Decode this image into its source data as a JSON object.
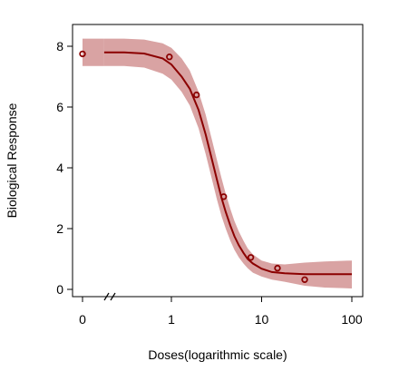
{
  "chart_data": {
    "type": "line",
    "xlabel": "Doses(logarithmic scale)",
    "ylabel": "Biological Response",
    "x_scale": "log",
    "x_break_after_zero": true,
    "xlim": [
      0,
      100
    ],
    "ylim": [
      0,
      8
    ],
    "x_ticks": [
      {
        "value": 0,
        "label": "0"
      },
      {
        "value": 1,
        "label": "1"
      },
      {
        "value": 10,
        "label": "10"
      },
      {
        "value": 100,
        "label": "100"
      }
    ],
    "y_ticks": [
      {
        "value": 0,
        "label": "0"
      },
      {
        "value": 2,
        "label": "2"
      },
      {
        "value": 4,
        "label": "4"
      },
      {
        "value": 6,
        "label": "6"
      },
      {
        "value": 8,
        "label": "8"
      }
    ],
    "series": [
      {
        "kind": "points",
        "x": [
          0,
          0.95,
          1.9,
          3.8,
          7.6,
          15,
          30
        ],
        "y": [
          7.75,
          7.65,
          6.4,
          3.05,
          1.05,
          0.7,
          0.32
        ]
      },
      {
        "kind": "fitted-curve",
        "x": [
          0.18,
          0.3,
          0.5,
          0.8,
          1.0,
          1.3,
          1.6,
          2.0,
          2.4,
          2.8,
          3.2,
          3.6,
          4.0,
          4.5,
          5.0,
          5.6,
          6.3,
          7.0,
          8.0,
          10,
          13,
          18,
          30,
          50,
          100
        ],
        "y": [
          7.8,
          7.8,
          7.76,
          7.6,
          7.4,
          7.0,
          6.6,
          5.9,
          5.1,
          4.3,
          3.6,
          3.0,
          2.55,
          2.1,
          1.75,
          1.45,
          1.2,
          1.0,
          0.85,
          0.68,
          0.57,
          0.53,
          0.5,
          0.5,
          0.5
        ]
      },
      {
        "kind": "confidence-band",
        "x": [
          0.18,
          0.3,
          0.5,
          0.8,
          1.0,
          1.3,
          1.6,
          2.0,
          2.4,
          2.8,
          3.2,
          3.6,
          4.0,
          4.5,
          5.0,
          5.6,
          6.3,
          7.0,
          8.0,
          10,
          13,
          18,
          30,
          50,
          100
        ],
        "lower": [
          7.35,
          7.35,
          7.3,
          7.1,
          6.9,
          6.5,
          6.05,
          5.3,
          4.45,
          3.65,
          2.95,
          2.4,
          2.0,
          1.6,
          1.3,
          1.05,
          0.85,
          0.7,
          0.55,
          0.42,
          0.32,
          0.25,
          0.12,
          0.06,
          0.03
        ],
        "upper": [
          8.25,
          8.25,
          8.22,
          8.1,
          7.95,
          7.6,
          7.2,
          6.5,
          5.75,
          4.95,
          4.25,
          3.65,
          3.15,
          2.65,
          2.25,
          1.9,
          1.6,
          1.35,
          1.15,
          0.95,
          0.85,
          0.82,
          0.88,
          0.92,
          0.95
        ]
      }
    ],
    "colors": {
      "curve": "#8b0000",
      "band": "#d9a3a3",
      "points": "#8b0000",
      "axis": "#000000"
    },
    "grid": false,
    "legend": "none"
  }
}
